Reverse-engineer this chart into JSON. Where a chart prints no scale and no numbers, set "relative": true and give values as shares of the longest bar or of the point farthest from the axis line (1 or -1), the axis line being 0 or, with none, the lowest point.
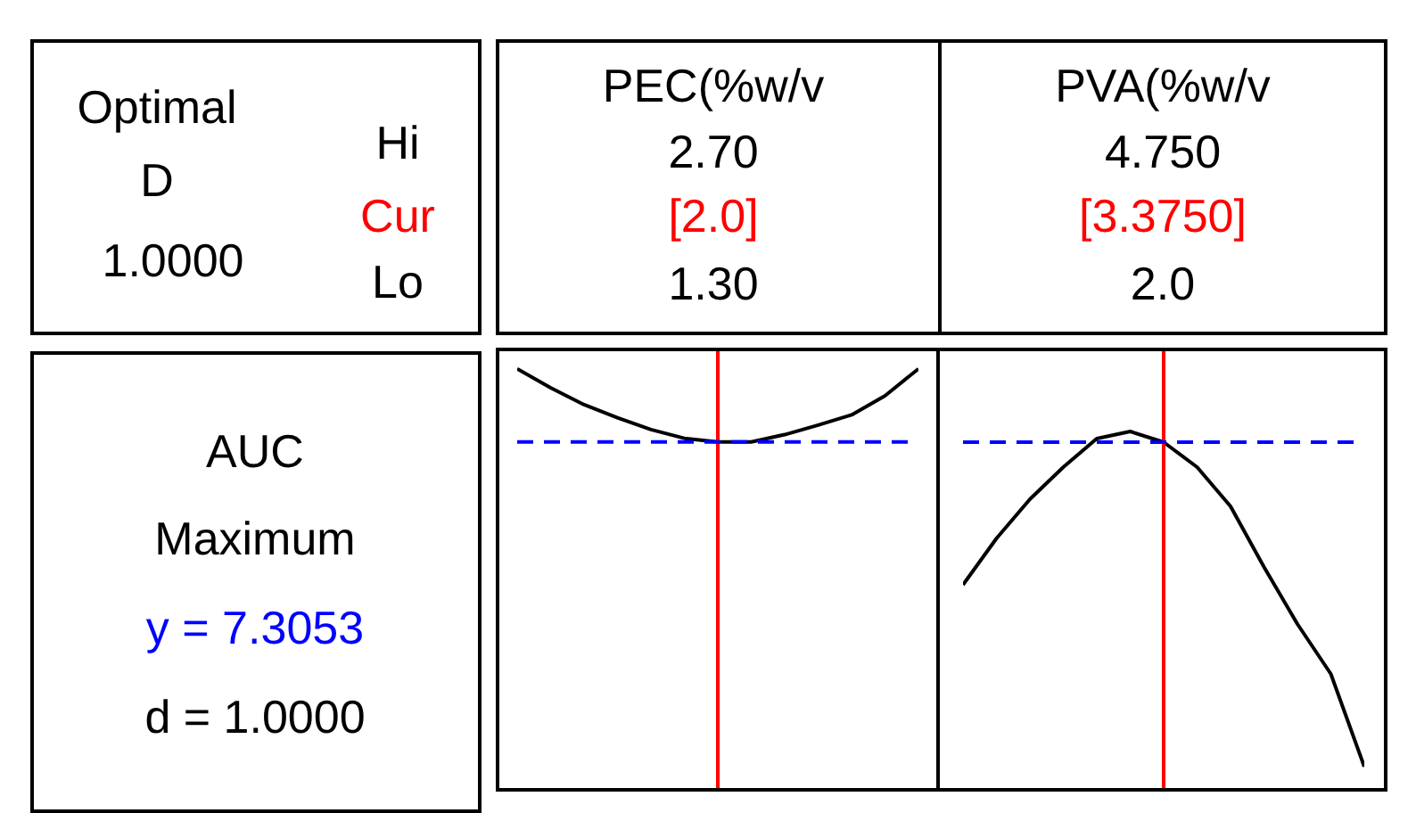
{
  "chart_data": [
    {
      "type": "other",
      "annotations": [
        "Optimal",
        "D",
        "1.0000",
        "Hi",
        "Cur",
        "Lo"
      ]
    },
    {
      "type": "other",
      "annotations": [
        "AUC",
        "Maximum",
        "y = 7.3053",
        "d = 1.0000"
      ]
    },
    {
      "type": "line",
      "title": "PEC(%w/v",
      "annotations": [
        "2.70",
        "[2.0]",
        "1.30"
      ],
      "relative": true,
      "categories": [
        null,
        null,
        null,
        null,
        null,
        null,
        null,
        null,
        null,
        null,
        null,
        null,
        null
      ],
      "series": [
        {
          "color": "#000000",
          "values": [
            1,
            0.74,
            0.51,
            0.33,
            0.17,
            0.05,
            0,
            0,
            0.1,
            0.23,
            0.37,
            0.63,
            1
          ]
        }
      ],
      "ref_lines": [
        {
          "axis": "y",
          "value": 0,
          "color": "#0000ff",
          "line_style": "dashed"
        }
      ]
    },
    {
      "type": "line",
      "title": "PVA(%w/v",
      "annotations": [
        "4.750",
        "[3.3750]",
        "2.0"
      ],
      "relative": true,
      "categories": [
        null,
        null,
        null,
        null,
        null,
        null,
        null,
        null,
        null,
        null,
        null,
        null,
        null
      ],
      "series": [
        {
          "color": "#000000",
          "values": [
            0.57,
            0.7,
            0.81,
            0.9,
            0.98,
            1,
            0.97,
            0.9,
            0.79,
            0.62,
            0.46,
            0.32,
            0.06
          ]
        }
      ],
      "ref_lines": [
        {
          "axis": "y",
          "value": 0.97,
          "color": "#0000ff",
          "line_style": "dashed"
        }
      ]
    }
  ]
}
